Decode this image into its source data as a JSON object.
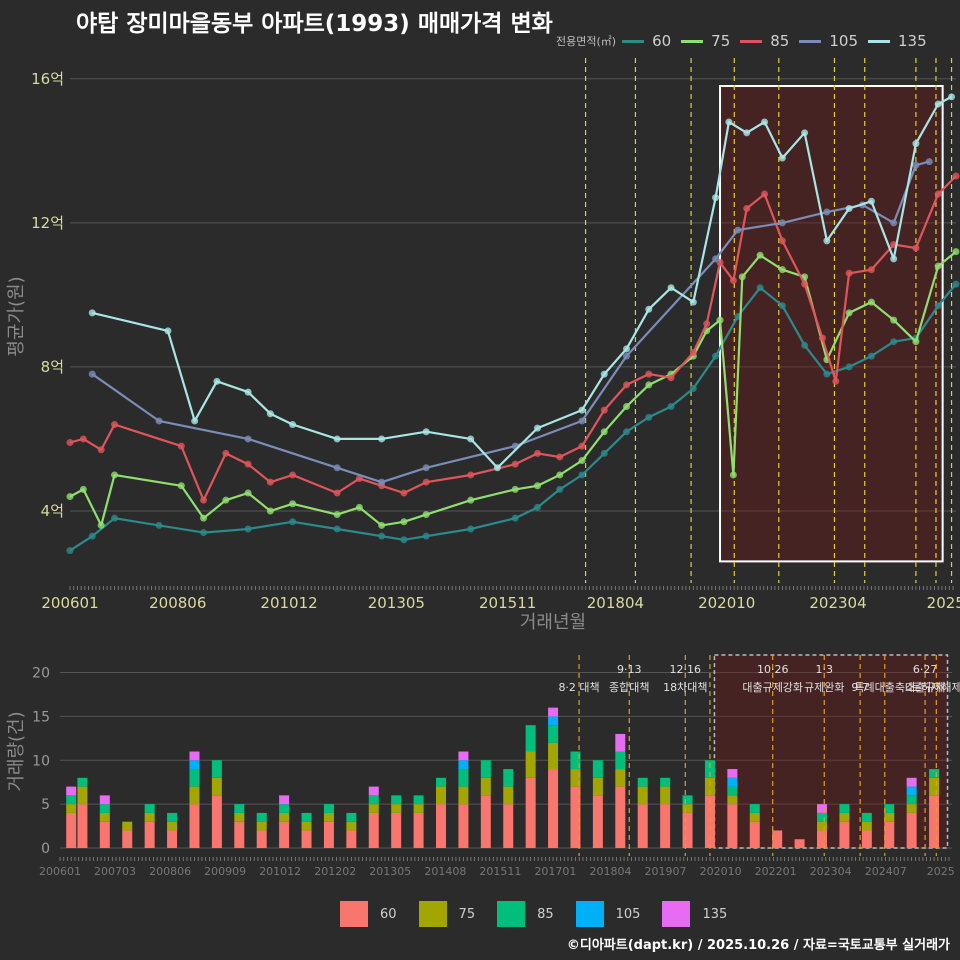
{
  "title": "야탑 장미마을동부 아파트(1993) 매매가격 변화",
  "credit": "©디아파트(dapt.kr) / 2025.10.26 / 자료=국토교통부 실거래가",
  "legend_top": {
    "title": "전용면적(㎡)",
    "items": [
      {
        "label": "60",
        "color": "#2a8a8c"
      },
      {
        "label": "75",
        "color": "#8fdf6f"
      },
      {
        "label": "85",
        "color": "#e0555a"
      },
      {
        "label": "105",
        "color": "#7a8db8"
      },
      {
        "label": "135",
        "color": "#a8e6e6"
      }
    ]
  },
  "legend_bottom": {
    "items": [
      {
        "label": "60",
        "color": "#f8766d"
      },
      {
        "label": "75",
        "color": "#a3a500"
      },
      {
        "label": "85",
        "color": "#00bf7d"
      },
      {
        "label": "105",
        "color": "#00b0f6"
      },
      {
        "label": "135",
        "color": "#e76bf3"
      }
    ]
  },
  "chart_data": [
    {
      "type": "line",
      "title": "야탑 장미마을동부 아파트(1993) 매매가격 변화",
      "xlabel": "거래년월",
      "ylabel": "평균가(원)",
      "x_ticks": [
        "200601",
        "200806",
        "201012",
        "201305",
        "201511",
        "201804",
        "202010",
        "202304",
        "2025"
      ],
      "x_tick_values": [
        2006.0,
        2008.42,
        2010.92,
        2013.33,
        2015.83,
        2018.25,
        2020.75,
        2023.25,
        2025.67
      ],
      "y_ticks": [
        "4억",
        "8억",
        "12억",
        "16억"
      ],
      "y_tick_values": [
        4,
        8,
        12,
        16
      ],
      "ylim": [
        2.0,
        16.8
      ],
      "xlim": [
        2006.0,
        2025.9
      ],
      "highlight_box": {
        "x0": 2020.6,
        "x1": 2025.6,
        "y0": 2.6,
        "y1": 15.8
      },
      "policy_dates": [
        2017.58,
        2018.7,
        2019.95,
        2020.92,
        2021.92,
        2023.17,
        2023.85,
        2025.0,
        2025.45,
        2025.8
      ],
      "series": [
        {
          "name": "60",
          "color": "#2a8a8c",
          "x": [
            2006.0,
            2006.5,
            2007.0,
            2008.0,
            2009.0,
            2010.0,
            2011.0,
            2012.0,
            2013.0,
            2013.5,
            2014.0,
            2015.0,
            2016.0,
            2016.5,
            2017.0,
            2017.5,
            2018.0,
            2018.5,
            2019.0,
            2019.5,
            2020.0,
            2020.5,
            2021.0,
            2021.5,
            2022.0,
            2022.5,
            2023.0,
            2023.5,
            2024.0,
            2024.5,
            2025.0,
            2025.5,
            2025.9
          ],
          "y": [
            2.9,
            3.3,
            3.8,
            3.6,
            3.4,
            3.5,
            3.7,
            3.5,
            3.3,
            3.2,
            3.3,
            3.5,
            3.8,
            4.1,
            4.6,
            5.0,
            5.6,
            6.2,
            6.6,
            6.9,
            7.4,
            8.3,
            9.4,
            10.2,
            9.7,
            8.6,
            7.8,
            8.0,
            8.3,
            8.7,
            8.8,
            9.7,
            10.3
          ]
        },
        {
          "name": "75",
          "color": "#8fdf6f",
          "x": [
            2006.0,
            2006.3,
            2006.7,
            2007.0,
            2008.5,
            2009.0,
            2009.5,
            2010.0,
            2010.5,
            2011.0,
            2012.0,
            2012.5,
            2013.0,
            2013.5,
            2014.0,
            2015.0,
            2016.0,
            2016.5,
            2017.0,
            2017.5,
            2018.0,
            2018.5,
            2019.0,
            2019.5,
            2020.0,
            2020.3,
            2020.6,
            2020.9,
            2021.1,
            2021.5,
            2022.0,
            2022.5,
            2023.0,
            2023.5,
            2024.0,
            2024.5,
            2025.0,
            2025.5,
            2025.9
          ],
          "y": [
            4.4,
            4.6,
            3.6,
            5.0,
            4.7,
            3.8,
            4.3,
            4.5,
            4.0,
            4.2,
            3.9,
            4.1,
            3.6,
            3.7,
            3.9,
            4.3,
            4.6,
            4.7,
            5.0,
            5.4,
            6.2,
            6.9,
            7.5,
            7.8,
            8.3,
            9.0,
            9.3,
            5.0,
            10.5,
            11.1,
            10.7,
            10.5,
            8.2,
            9.5,
            9.8,
            9.3,
            8.7,
            10.8,
            11.2
          ]
        },
        {
          "name": "85",
          "color": "#e0555a",
          "x": [
            2006.0,
            2006.3,
            2006.7,
            2007.0,
            2008.5,
            2009.0,
            2009.5,
            2010.0,
            2010.5,
            2011.0,
            2012.0,
            2012.5,
            2013.0,
            2013.5,
            2014.0,
            2015.0,
            2016.0,
            2016.5,
            2017.0,
            2017.5,
            2018.0,
            2018.5,
            2019.0,
            2019.5,
            2020.0,
            2020.3,
            2020.6,
            2020.9,
            2021.2,
            2021.6,
            2022.0,
            2022.5,
            2022.9,
            2023.2,
            2023.5,
            2024.0,
            2024.5,
            2025.0,
            2025.5,
            2025.9
          ],
          "y": [
            5.9,
            6.0,
            5.7,
            6.4,
            5.8,
            4.3,
            5.6,
            5.3,
            4.8,
            5.0,
            4.5,
            4.9,
            4.7,
            4.5,
            4.8,
            5.0,
            5.3,
            5.6,
            5.5,
            5.8,
            6.8,
            7.5,
            7.8,
            7.7,
            8.4,
            9.2,
            10.9,
            10.4,
            12.4,
            12.8,
            11.5,
            10.3,
            8.8,
            7.6,
            10.6,
            10.7,
            11.4,
            11.3,
            12.8,
            13.3
          ]
        },
        {
          "name": "105",
          "color": "#7a8db8",
          "x": [
            2006.5,
            2008.0,
            2010.0,
            2012.0,
            2013.0,
            2014.0,
            2016.0,
            2017.5,
            2018.5,
            2020.5,
            2021.0,
            2022.0,
            2023.0,
            2023.8,
            2024.5,
            2025.0,
            2025.3
          ],
          "y": [
            7.8,
            6.5,
            6.0,
            5.2,
            4.8,
            5.2,
            5.8,
            6.5,
            8.3,
            11.0,
            11.8,
            12.0,
            12.3,
            12.5,
            12.0,
            13.6,
            13.7
          ]
        },
        {
          "name": "135",
          "color": "#a8e6e6",
          "x": [
            2006.5,
            2008.2,
            2008.8,
            2009.3,
            2010.0,
            2010.5,
            2011.0,
            2012.0,
            2013.0,
            2014.0,
            2015.0,
            2015.6,
            2016.5,
            2017.5,
            2018.0,
            2018.5,
            2019.0,
            2019.5,
            2020.0,
            2020.5,
            2020.8,
            2021.2,
            2021.6,
            2022.0,
            2022.5,
            2023.0,
            2023.5,
            2024.0,
            2024.5,
            2025.0,
            2025.5,
            2025.8
          ],
          "y": [
            9.5,
            9.0,
            6.5,
            7.6,
            7.3,
            6.7,
            6.4,
            6.0,
            6.0,
            6.2,
            6.0,
            5.2,
            6.3,
            6.8,
            7.8,
            8.5,
            9.6,
            10.2,
            9.8,
            12.7,
            14.8,
            14.5,
            14.8,
            13.8,
            14.5,
            11.5,
            12.4,
            12.6,
            11.0,
            14.2,
            15.3,
            15.5
          ]
        }
      ]
    },
    {
      "type": "bar",
      "title": "",
      "xlabel": "",
      "ylabel": "거래량(건)",
      "x_ticks": [
        "200601",
        "200703",
        "200806",
        "200909",
        "201012",
        "201202",
        "201305",
        "201408",
        "201511",
        "201701",
        "201804",
        "201907",
        "202010",
        "202201",
        "202304",
        "202407",
        "2025"
      ],
      "y_ticks": [
        "0",
        "5",
        "10",
        "15",
        "20"
      ],
      "y_tick_values": [
        0,
        5,
        10,
        15,
        20
      ],
      "ylim": [
        0,
        22
      ],
      "highlight_box": {
        "x0": 2020.6,
        "x1": 2025.8,
        "y0": 0,
        "y1": 22
      },
      "stack_order": [
        "60",
        "75",
        "85",
        "105",
        "135"
      ],
      "series": [
        {
          "name": "60",
          "color": "#f8766d",
          "x": [
            2006.25,
            2006.5,
            2007.0,
            2007.5,
            2008.0,
            2008.5,
            2009.0,
            2009.5,
            2010.0,
            2010.5,
            2011.0,
            2011.5,
            2012.0,
            2012.5,
            2013.0,
            2013.5,
            2014.0,
            2014.5,
            2015.0,
            2015.5,
            2016.0,
            2016.5,
            2017.0,
            2017.5,
            2018.0,
            2018.5,
            2019.0,
            2019.5,
            2020.0,
            2020.5,
            2021.0,
            2021.5,
            2022.0,
            2022.5,
            2023.0,
            2023.5,
            2024.0,
            2024.5,
            2025.0,
            2025.5
          ],
          "values": [
            4,
            5,
            3,
            2,
            3,
            2,
            5,
            6,
            3,
            2,
            3,
            2,
            3,
            2,
            4,
            4,
            4,
            5,
            5,
            6,
            5,
            8,
            9,
            7,
            6,
            7,
            5,
            5,
            4,
            6,
            5,
            3,
            2,
            1,
            2,
            3,
            2,
            3,
            4,
            6
          ]
        },
        {
          "name": "75",
          "color": "#a3a500",
          "x": [
            2006.25,
            2006.5,
            2007.0,
            2007.5,
            2008.0,
            2008.5,
            2009.0,
            2009.5,
            2010.0,
            2010.5,
            2011.0,
            2011.5,
            2012.0,
            2012.5,
            2013.0,
            2013.5,
            2014.0,
            2014.5,
            2015.0,
            2015.5,
            2016.0,
            2016.5,
            2017.0,
            2017.5,
            2018.0,
            2018.5,
            2019.0,
            2019.5,
            2020.0,
            2020.5,
            2021.0,
            2021.5,
            2022.0,
            2022.5,
            2023.0,
            2023.5,
            2024.0,
            2024.5,
            2025.0,
            2025.5
          ],
          "values": [
            1,
            2,
            1,
            1,
            1,
            1,
            2,
            2,
            1,
            1,
            1,
            1,
            1,
            1,
            1,
            1,
            1,
            2,
            2,
            2,
            2,
            3,
            3,
            2,
            2,
            2,
            2,
            2,
            1,
            2,
            1,
            1,
            0,
            0,
            1,
            1,
            1,
            1,
            1,
            2
          ]
        },
        {
          "name": "85",
          "color": "#00bf7d",
          "x": [
            2006.25,
            2006.5,
            2007.0,
            2007.5,
            2008.0,
            2008.5,
            2009.0,
            2009.5,
            2010.0,
            2010.5,
            2011.0,
            2011.5,
            2012.0,
            2012.5,
            2013.0,
            2013.5,
            2014.0,
            2014.5,
            2015.0,
            2015.5,
            2016.0,
            2016.5,
            2017.0,
            2017.5,
            2018.0,
            2018.5,
            2019.0,
            2019.5,
            2020.0,
            2020.5,
            2021.0,
            2021.5,
            2022.0,
            2022.5,
            2023.0,
            2023.5,
            2024.0,
            2024.5,
            2025.0,
            2025.5
          ],
          "values": [
            1,
            1,
            1,
            0,
            1,
            1,
            2,
            2,
            1,
            1,
            1,
            1,
            1,
            1,
            1,
            1,
            1,
            1,
            2,
            2,
            2,
            3,
            2,
            2,
            2,
            2,
            1,
            1,
            1,
            2,
            1,
            1,
            0,
            0,
            1,
            1,
            1,
            1,
            1,
            1
          ]
        },
        {
          "name": "105",
          "color": "#00b0f6",
          "x": [
            2006.25,
            2007.0,
            2009.0,
            2011.0,
            2013.0,
            2015.0,
            2017.0,
            2019.0,
            2021.0,
            2023.0,
            2025.0
          ],
          "values": [
            0,
            0,
            1,
            0,
            0,
            1,
            1,
            0,
            1,
            0,
            1
          ]
        },
        {
          "name": "135",
          "color": "#e76bf3",
          "x": [
            2006.25,
            2007.0,
            2009.0,
            2011.0,
            2013.0,
            2015.0,
            2017.0,
            2018.5,
            2021.0,
            2023.0,
            2025.0
          ],
          "values": [
            1,
            1,
            1,
            1,
            1,
            1,
            1,
            2,
            1,
            1,
            1
          ]
        }
      ],
      "policy_annotations": [
        {
          "x": 2017.58,
          "line1": "",
          "line2": "8·2 대책"
        },
        {
          "x": 2018.7,
          "line1": "9·13",
          "line2": "종합대책"
        },
        {
          "x": 2019.95,
          "line1": "12·16",
          "line2": "18차대책"
        },
        {
          "x": 2020.5,
          "line1": "",
          "line2": ""
        },
        {
          "x": 2021.9,
          "line1": "10·26",
          "line2": "대출규제강화"
        },
        {
          "x": 2023.05,
          "line1": "1·3",
          "line2": "규제완화"
        },
        {
          "x": 2023.85,
          "line1": "",
          "line2": "9·7"
        },
        {
          "x": 2024.4,
          "line1": "",
          "line2": "특례대출축소"
        },
        {
          "x": 2025.3,
          "line1": "6·27",
          "line2": "대출규제"
        },
        {
          "x": 2025.55,
          "line1": "",
          "line2": "토허제해제"
        }
      ]
    }
  ]
}
